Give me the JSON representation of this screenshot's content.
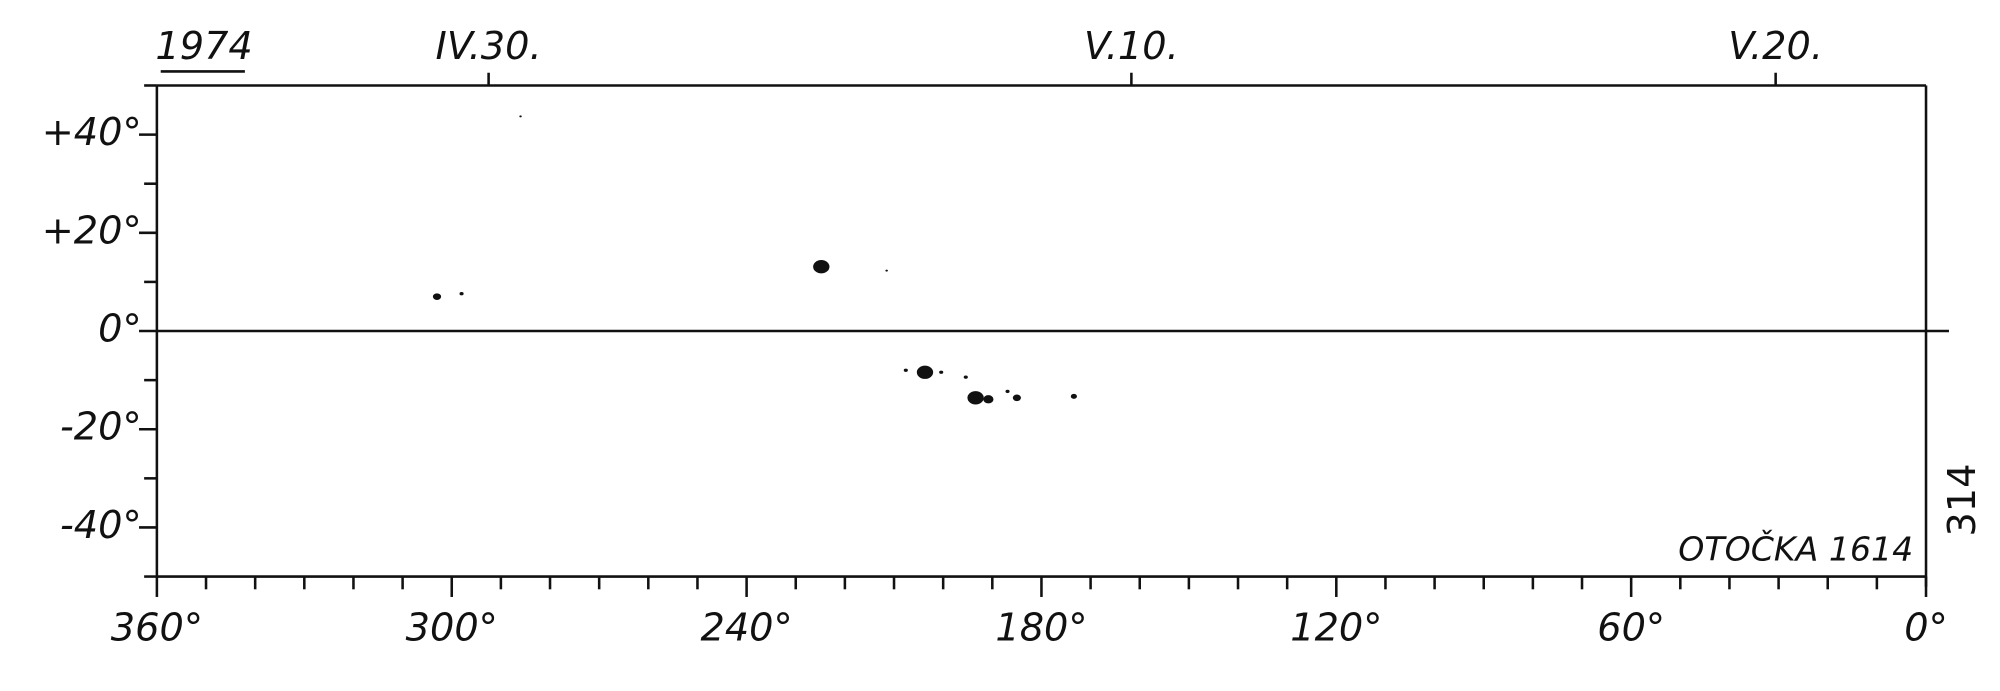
{
  "chart_data": {
    "type": "scatter",
    "year_label": "1974",
    "annotation": "OTOČKA 1614",
    "side_label": "314",
    "x": [
      303,
      298,
      286,
      224.8,
      211.5,
      207.6,
      203.7,
      200.4,
      195.4,
      193.4,
      190.8,
      186.9,
      185,
      173.4
    ],
    "values": [
      7,
      7.6,
      43.7,
      13.1,
      12.3,
      -8,
      -8.4,
      -8.4,
      -9.4,
      -13.6,
      -13.9,
      -12.3,
      -13.6,
      -13.3
    ],
    "sizes": [
      2,
      1,
      0.6,
      4,
      0.6,
      1,
      4,
      1,
      1,
      4,
      2.5,
      1,
      2,
      1.5
    ],
    "color": "#111111",
    "xlim": [
      360,
      0
    ],
    "ylim": [
      -50,
      50
    ],
    "xticks": [
      {
        "value": 360,
        "label": "360°"
      },
      {
        "value": 300,
        "label": "300°"
      },
      {
        "value": 240,
        "label": "240°"
      },
      {
        "value": 180,
        "label": "180°"
      },
      {
        "value": 120,
        "label": "120°"
      },
      {
        "value": 60,
        "label": "60°"
      },
      {
        "value": 0,
        "label": "0°"
      }
    ],
    "xminorticks": [
      350,
      340,
      330,
      320,
      310,
      290,
      280,
      270,
      260,
      250,
      230,
      220,
      210,
      200,
      190,
      170,
      160,
      150,
      140,
      130,
      110,
      100,
      90,
      80,
      70,
      50,
      40,
      30,
      20,
      10
    ],
    "yticks": [
      {
        "value": 40,
        "label": "+40°"
      },
      {
        "value": 20,
        "label": "+20°"
      },
      {
        "value": 0,
        "label": "0°"
      },
      {
        "value": -20,
        "label": "-20°"
      },
      {
        "value": -40,
        "label": "-40°"
      }
    ],
    "yminorticks": [
      50,
      30,
      10,
      -10,
      -30,
      -50
    ],
    "x2ticks": [
      {
        "value": 292.5,
        "label": "IV.30."
      },
      {
        "value": 161.7,
        "label": "V.10."
      },
      {
        "value": 30.6,
        "label": "V.20."
      }
    ]
  }
}
